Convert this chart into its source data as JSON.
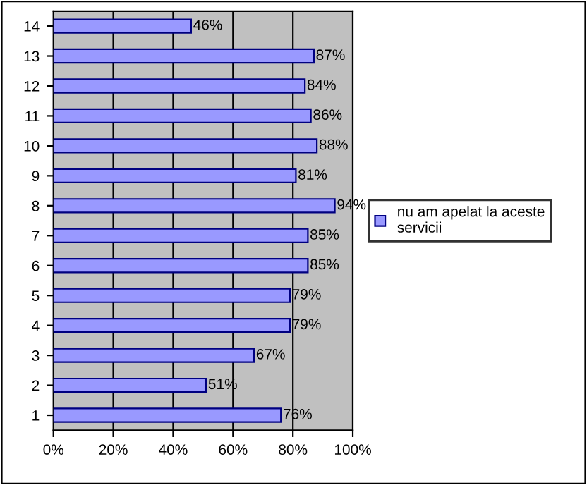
{
  "chart_data": {
    "type": "bar",
    "orientation": "horizontal",
    "categories": [
      "14",
      "13",
      "12",
      "11",
      "10",
      "9",
      "8",
      "7",
      "6",
      "5",
      "4",
      "3",
      "2",
      "1"
    ],
    "series": [
      {
        "name": "nu am apelat la aceste\nservicii",
        "color": "#9999ff",
        "values": [
          46,
          87,
          84,
          86,
          88,
          81,
          94,
          85,
          85,
          79,
          79,
          67,
          51,
          76
        ]
      }
    ],
    "value_labels": [
      "46%",
      "87%",
      "84%",
      "86%",
      "88%",
      "81%",
      "94%",
      "85%",
      "85%",
      "79%",
      "79%",
      "67%",
      "51%",
      "76%"
    ],
    "xlim": [
      0,
      100
    ],
    "xticks": [
      {
        "value": 0,
        "label": "0%"
      },
      {
        "value": 20,
        "label": "20%"
      },
      {
        "value": 40,
        "label": "40%"
      },
      {
        "value": 60,
        "label": "60%"
      },
      {
        "value": 80,
        "label": "80%"
      },
      {
        "value": 100,
        "label": "100%"
      }
    ],
    "grid": "x",
    "legend": "right"
  }
}
